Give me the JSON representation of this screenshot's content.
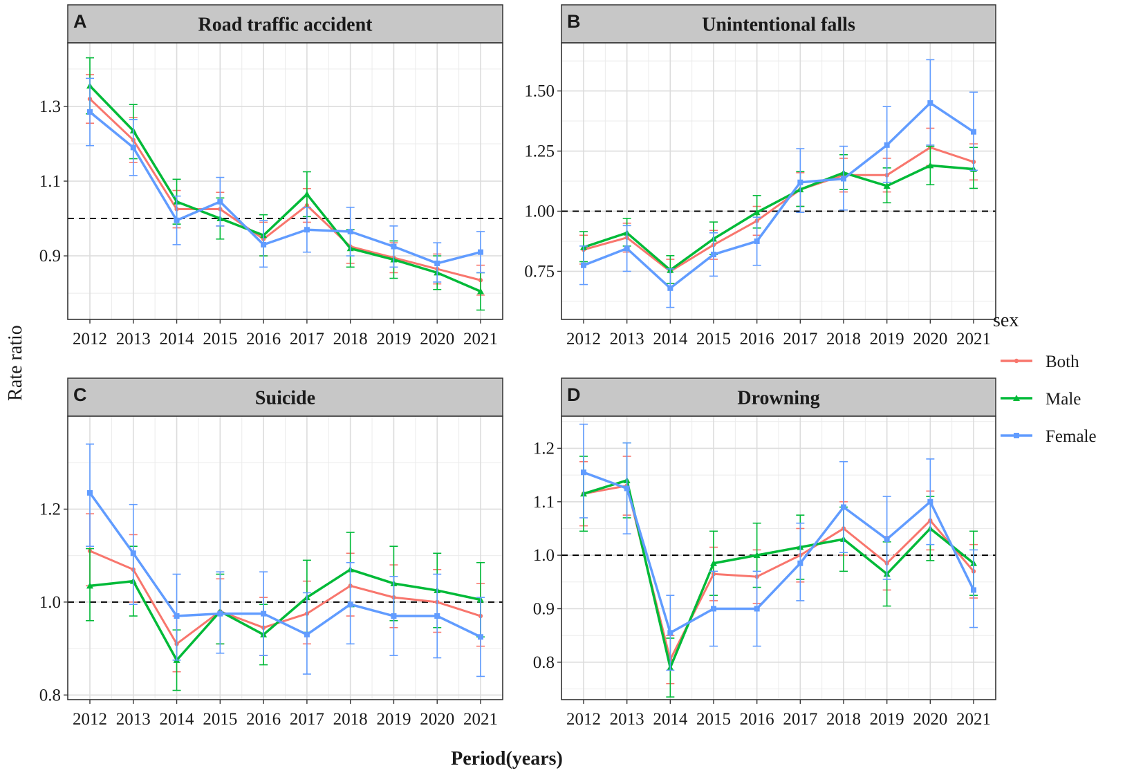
{
  "chart_data": {
    "type": "line",
    "layout": "facet_grid_2x2",
    "xlabel": "Period(years)",
    "ylabel": "Rate ratio",
    "legend": {
      "title": "sex",
      "placement": "right",
      "entries": [
        "Both",
        "Male",
        "Female"
      ]
    },
    "colors": {
      "Both": "#F8766D",
      "Male": "#00BA38",
      "Female": "#619CFF",
      "reference": "#000000"
    },
    "x": [
      "2012",
      "2013",
      "2014",
      "2015",
      "2016",
      "2017",
      "2018",
      "2019",
      "2020",
      "2021"
    ],
    "reference_line": 1.0,
    "grid": true,
    "panels": [
      {
        "letter": "A",
        "title": "Road traffic accident",
        "ylim": [
          0.73,
          1.47
        ],
        "yticks": [
          0.9,
          1.1,
          1.3
        ],
        "ytick_labels": [
          "0.9",
          "1.1",
          "1.3"
        ],
        "series": [
          {
            "name": "Both",
            "values": [
              1.32,
              1.21,
              1.025,
              1.025,
              0.945,
              1.035,
              0.925,
              0.895,
              0.865,
              0.835
            ],
            "lower": [
              1.255,
              1.15,
              0.975,
              0.98,
              0.9,
              0.99,
              0.88,
              0.855,
              0.825,
              0.795
            ],
            "upper": [
              1.385,
              1.27,
              1.075,
              1.07,
              0.99,
              1.08,
              0.97,
              0.935,
              0.905,
              0.875
            ]
          },
          {
            "name": "Male",
            "values": [
              1.355,
              1.235,
              1.045,
              1.0,
              0.955,
              1.065,
              0.92,
              0.89,
              0.855,
              0.805
            ],
            "lower": [
              1.28,
              1.16,
              0.985,
              0.945,
              0.9,
              1.005,
              0.87,
              0.84,
              0.81,
              0.755
            ],
            "upper": [
              1.43,
              1.305,
              1.105,
              1.055,
              1.01,
              1.125,
              0.97,
              0.94,
              0.9,
              0.855
            ]
          },
          {
            "name": "Female",
            "values": [
              1.285,
              1.19,
              0.995,
              1.045,
              0.93,
              0.97,
              0.965,
              0.925,
              0.88,
              0.91
            ],
            "lower": [
              1.195,
              1.115,
              0.93,
              0.98,
              0.87,
              0.91,
              0.9,
              0.87,
              0.83,
              0.855
            ],
            "upper": [
              1.375,
              1.265,
              1.06,
              1.11,
              0.995,
              1.03,
              1.03,
              0.98,
              0.935,
              0.965
            ]
          }
        ]
      },
      {
        "letter": "B",
        "title": "Unintentional falls",
        "ylim": [
          0.55,
          1.7
        ],
        "yticks": [
          0.75,
          1.0,
          1.25,
          1.5
        ],
        "ytick_labels": [
          "0.75",
          "1.00",
          "1.25",
          "1.50"
        ],
        "series": [
          {
            "name": "Both",
            "values": [
              0.84,
              0.89,
              0.75,
              0.86,
              0.96,
              1.09,
              1.15,
              1.15,
              1.265,
              1.205
            ],
            "lower": [
              0.78,
              0.83,
              0.7,
              0.8,
              0.9,
              1.02,
              1.08,
              1.08,
              1.19,
              1.13
            ],
            "upper": [
              0.9,
              0.95,
              0.8,
              0.92,
              1.02,
              1.16,
              1.22,
              1.22,
              1.345,
              1.28
            ]
          },
          {
            "name": "Male",
            "values": [
              0.85,
              0.91,
              0.755,
              0.885,
              0.995,
              1.09,
              1.16,
              1.105,
              1.19,
              1.175
            ],
            "lower": [
              0.79,
              0.855,
              0.7,
              0.82,
              0.93,
              1.02,
              1.09,
              1.035,
              1.11,
              1.095
            ],
            "upper": [
              0.915,
              0.97,
              0.815,
              0.955,
              1.065,
              1.165,
              1.235,
              1.18,
              1.27,
              1.265
            ]
          },
          {
            "name": "Female",
            "values": [
              0.775,
              0.845,
              0.68,
              0.82,
              0.875,
              1.12,
              1.135,
              1.275,
              1.45,
              1.33
            ],
            "lower": [
              0.695,
              0.75,
              0.6,
              0.73,
              0.775,
              0.995,
              1.005,
              1.12,
              1.275,
              1.17
            ],
            "upper": [
              0.855,
              0.94,
              0.76,
              0.91,
              0.975,
              1.26,
              1.27,
              1.435,
              1.63,
              1.495
            ]
          }
        ]
      },
      {
        "letter": "C",
        "title": "Suicide",
        "ylim": [
          0.79,
          1.4
        ],
        "yticks": [
          0.8,
          1.0,
          1.2
        ],
        "ytick_labels": [
          "0.8",
          "1.0",
          "1.2"
        ],
        "series": [
          {
            "name": "Both",
            "values": [
              1.11,
              1.07,
              0.91,
              0.98,
              0.945,
              0.975,
              1.035,
              1.01,
              1.0,
              0.97
            ],
            "lower": [
              1.035,
              1.0,
              0.85,
              0.91,
              0.885,
              0.91,
              0.97,
              0.945,
              0.935,
              0.905
            ],
            "upper": [
              1.19,
              1.145,
              0.97,
              1.05,
              1.01,
              1.045,
              1.105,
              1.08,
              1.07,
              1.04
            ]
          },
          {
            "name": "Male",
            "values": [
              1.035,
              1.045,
              0.875,
              0.98,
              0.93,
              1.01,
              1.07,
              1.04,
              1.025,
              1.005
            ],
            "lower": [
              0.96,
              0.97,
              0.81,
              0.91,
              0.865,
              0.935,
              0.99,
              0.96,
              0.945,
              0.925
            ],
            "upper": [
              1.115,
              1.12,
              0.94,
              1.06,
              0.995,
              1.09,
              1.15,
              1.12,
              1.105,
              1.085
            ]
          },
          {
            "name": "Female",
            "values": [
              1.235,
              1.105,
              0.97,
              0.975,
              0.975,
              0.93,
              0.995,
              0.97,
              0.97,
              0.925
            ],
            "lower": [
              1.12,
              0.995,
              0.875,
              0.89,
              0.885,
              0.845,
              0.91,
              0.885,
              0.88,
              0.84
            ],
            "upper": [
              1.34,
              1.21,
              1.06,
              1.065,
              1.065,
              1.02,
              1.085,
              1.055,
              1.06,
              1.01
            ]
          }
        ]
      },
      {
        "letter": "D",
        "title": "Drowning",
        "ylim": [
          0.73,
          1.26
        ],
        "yticks": [
          0.8,
          0.9,
          1.0,
          1.1,
          1.2
        ],
        "ytick_labels": [
          "0.8",
          "0.9",
          "1.0",
          "1.1",
          "1.2"
        ],
        "series": [
          {
            "name": "Both",
            "values": [
              1.115,
              1.13,
              0.805,
              0.965,
              0.96,
              1.0,
              1.05,
              0.985,
              1.065,
              0.97
            ],
            "lower": [
              1.055,
              1.075,
              0.76,
              0.915,
              0.91,
              0.95,
              1.0,
              0.935,
              1.01,
              0.92
            ],
            "upper": [
              1.175,
              1.185,
              0.85,
              1.015,
              1.01,
              1.05,
              1.1,
              1.035,
              1.12,
              1.02
            ]
          },
          {
            "name": "Male",
            "values": [
              1.115,
              1.14,
              0.79,
              0.985,
              1.0,
              1.015,
              1.03,
              0.965,
              1.05,
              0.985
            ],
            "lower": [
              1.045,
              1.07,
              0.735,
              0.925,
              0.94,
              0.955,
              0.97,
              0.905,
              0.99,
              0.925
            ],
            "upper": [
              1.185,
              1.21,
              0.845,
              1.045,
              1.06,
              1.075,
              1.09,
              1.025,
              1.11,
              1.045
            ]
          },
          {
            "name": "Female",
            "values": [
              1.155,
              1.125,
              0.855,
              0.9,
              0.9,
              0.985,
              1.09,
              1.03,
              1.1,
              0.935
            ],
            "lower": [
              1.07,
              1.04,
              0.785,
              0.83,
              0.83,
              0.915,
              1.005,
              0.955,
              1.02,
              0.865
            ],
            "upper": [
              1.245,
              1.21,
              0.925,
              0.97,
              0.97,
              1.06,
              1.175,
              1.11,
              1.18,
              1.01
            ]
          }
        ]
      }
    ]
  }
}
